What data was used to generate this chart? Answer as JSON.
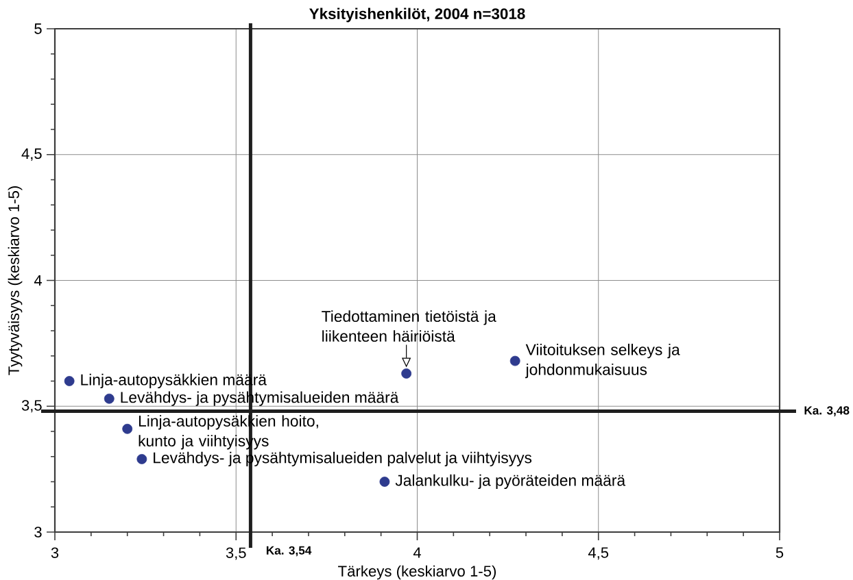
{
  "chart_data": {
    "type": "scatter",
    "title": "Yksityishenkilöt, 2004 n=3018",
    "xlabel": "Tärkeys (keskiarvo 1-5)",
    "ylabel": "Tyytyväisyys (keskiarvo 1-5)",
    "x": [
      3.04,
      3.15,
      3.2,
      3.24,
      3.91,
      3.97,
      4.27
    ],
    "values": [
      3.6,
      3.53,
      3.41,
      3.29,
      3.2,
      3.63,
      3.68
    ],
    "color": "#2e3b8e",
    "marker": "circle",
    "xlim": [
      3,
      5
    ],
    "ylim": [
      3,
      5
    ],
    "xticks": [
      3,
      {
        "value": 3.1,
        "label": null
      },
      {
        "value": 3.2,
        "label": null
      },
      {
        "value": 3.3,
        "label": null
      },
      {
        "value": 3.4,
        "label": null
      },
      {
        "value": 3.5,
        "label": "3,5"
      },
      {
        "value": 3.6,
        "label": null
      },
      {
        "value": 3.7,
        "label": null
      },
      {
        "value": 3.8,
        "label": null
      },
      {
        "value": 3.9,
        "label": null
      },
      4,
      {
        "value": 4.1,
        "label": null
      },
      {
        "value": 4.2,
        "label": null
      },
      {
        "value": 4.3,
        "label": null
      },
      {
        "value": 4.4,
        "label": null
      },
      {
        "value": 4.5,
        "label": "4,5"
      },
      {
        "value": 4.6,
        "label": null
      },
      {
        "value": 4.7,
        "label": null
      },
      {
        "value": 4.8,
        "label": null
      },
      {
        "value": 4.9,
        "label": null
      },
      5
    ],
    "yticks": [
      3,
      {
        "value": 3.1,
        "label": null
      },
      {
        "value": 3.2,
        "label": null
      },
      {
        "value": 3.3,
        "label": null
      },
      {
        "value": 3.4,
        "label": null
      },
      {
        "value": 3.5,
        "label": "3,5"
      },
      {
        "value": 3.6,
        "label": null
      },
      {
        "value": 3.7,
        "label": null
      },
      {
        "value": 3.8,
        "label": null
      },
      {
        "value": 3.9,
        "label": null
      },
      4,
      {
        "value": 4.1,
        "label": null
      },
      {
        "value": 4.2,
        "label": null
      },
      {
        "value": 4.3,
        "label": null
      },
      {
        "value": 4.4,
        "label": null
      },
      {
        "value": 4.5,
        "label": "4,5"
      },
      {
        "value": 4.6,
        "label": null
      },
      {
        "value": 4.7,
        "label": null
      },
      {
        "value": 4.8,
        "label": null
      },
      {
        "value": 4.9,
        "label": null
      },
      5
    ],
    "grid": true,
    "ref_lines": [
      {
        "axis": "x",
        "value": 3.54,
        "label": "Ka. 3,54",
        "color": "#1e1e1e"
      },
      {
        "axis": "y",
        "value": 3.48,
        "label": "Ka. 3,48",
        "color": "#1e1e1e"
      }
    ],
    "annotations": [
      {
        "text": "Linja-autopysäkkien määrä",
        "x": 3.04,
        "y": 3.6
      },
      {
        "text": "Levähdys- ja pysähtymisalueiden määrä",
        "x": 3.15,
        "y": 3.53
      },
      {
        "text": "Linja-autopysäkkien hoito, kunto ja viihtyisyys",
        "x": 3.2,
        "y": 3.41
      },
      {
        "text": "Levähdys- ja pysähtymisalueiden palvelut ja viihtyisyys",
        "x": 3.24,
        "y": 3.29
      },
      {
        "text": "Jalankulku- ja pyöräteiden määrä",
        "x": 3.91,
        "y": 3.2
      },
      {
        "text": "Tiedottaminen tietöistä ja liikenteen häiriöistä",
        "x": 3.97,
        "y": 3.63
      },
      {
        "text": "Viitoituksen selkeys ja johdonmukaisuus",
        "x": 4.27,
        "y": 3.68
      }
    ]
  }
}
